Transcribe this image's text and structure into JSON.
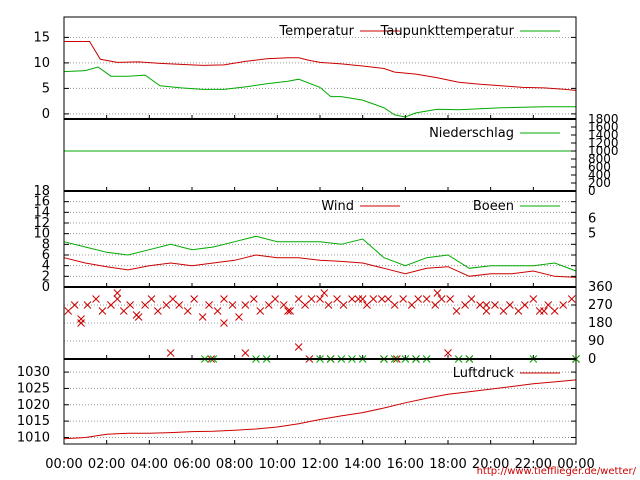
{
  "colors": {
    "red": "#cc0000",
    "green": "#00aa00",
    "grid": "#999999"
  },
  "credit": "http://www.tiefflieger.de/wetter/",
  "chart_data": [
    {
      "type": "line",
      "name": "temperature",
      "ylim": [
        -1,
        19
      ],
      "yticks": [
        0,
        5,
        10,
        15
      ],
      "grid": true,
      "legend": "top-right",
      "series": [
        {
          "name": "Temperatur",
          "color": "#cc0000",
          "x": [
            0,
            1.2,
            1.7,
            2.5,
            3.5,
            4.5,
            5.5,
            6.5,
            7.5,
            8.5,
            9.5,
            10.5,
            11.0,
            11.5,
            12.0,
            13.0,
            14.0,
            15.0,
            15.5,
            16.5,
            17.5,
            18.5,
            19.5,
            20.5,
            21.5,
            22.5,
            23.5,
            24.0
          ],
          "values": [
            14.2,
            14.2,
            10.7,
            10.1,
            10.2,
            9.9,
            9.7,
            9.5,
            9.6,
            10.3,
            10.8,
            11.0,
            11.0,
            10.5,
            10.1,
            9.8,
            9.4,
            8.9,
            8.2,
            7.8,
            7.1,
            6.2,
            5.8,
            5.5,
            5.2,
            5.1,
            4.8,
            4.6
          ]
        },
        {
          "name": "Taupunkttemperatur",
          "color": "#00aa00",
          "x": [
            0,
            1.0,
            1.6,
            2.2,
            3.0,
            3.8,
            4.5,
            5.5,
            6.5,
            7.5,
            8.5,
            9.5,
            10.5,
            11.0,
            12.0,
            12.5,
            13.0,
            14.0,
            15.0,
            15.5,
            16.0,
            16.5,
            17.5,
            18.5,
            19.5,
            20.5,
            21.5,
            22.5,
            24.0
          ],
          "values": [
            8.3,
            8.5,
            9.2,
            7.4,
            7.4,
            7.6,
            5.5,
            5.1,
            4.8,
            4.8,
            5.3,
            5.9,
            6.4,
            6.8,
            5.2,
            3.4,
            3.4,
            2.7,
            1.2,
            -0.2,
            -0.6,
            0.2,
            0.9,
            0.8,
            1.0,
            1.2,
            1.3,
            1.4,
            1.4
          ]
        }
      ]
    },
    {
      "type": "line",
      "name": "precipitation",
      "ylim": [
        0,
        1800
      ],
      "yticks": [
        0,
        200,
        400,
        600,
        800,
        1000,
        1200,
        1400,
        1600,
        1800
      ],
      "y_axis": "right",
      "legend": "top-right",
      "series": [
        {
          "name": "Niederschlag",
          "color": "#00aa00",
          "x": [
            0,
            24
          ],
          "values": [
            1000,
            1000
          ]
        }
      ]
    },
    {
      "type": "line",
      "name": "wind",
      "ylim": [
        0,
        18
      ],
      "yticks": [
        0,
        2,
        4,
        6,
        8,
        10,
        12,
        14,
        16,
        18
      ],
      "right_yticks": [
        {
          "label": "6",
          "at": 12.8
        },
        {
          "label": "5",
          "at": 10.0
        }
      ],
      "grid": true,
      "legend": "top-right",
      "series": [
        {
          "name": "Wind",
          "color": "#cc0000",
          "x": [
            0,
            1,
            2,
            3,
            4,
            5,
            6,
            7,
            8,
            9,
            10,
            11,
            12,
            13,
            14,
            15,
            16,
            17,
            18,
            19,
            20,
            21,
            22,
            23,
            24
          ],
          "values": [
            5.5,
            4.5,
            3.8,
            3.2,
            4.0,
            4.5,
            4.0,
            4.5,
            5.0,
            6.0,
            5.5,
            5.5,
            5.0,
            4.8,
            4.5,
            3.5,
            2.5,
            3.5,
            3.8,
            2.0,
            2.5,
            2.5,
            3.0,
            2.0,
            1.8
          ]
        },
        {
          "name": "Boeen",
          "color": "#00aa00",
          "x": [
            0,
            1,
            2,
            3,
            4,
            5,
            6,
            7,
            8,
            9,
            10,
            11,
            12,
            13,
            14,
            15,
            16,
            17,
            18,
            19,
            20,
            21,
            22,
            23,
            24
          ],
          "values": [
            8.5,
            7.5,
            6.5,
            6.0,
            7.0,
            8.0,
            7.0,
            7.5,
            8.5,
            9.5,
            8.5,
            8.5,
            8.5,
            8.0,
            9.0,
            5.5,
            4.0,
            5.5,
            6.0,
            3.5,
            4.0,
            4.0,
            4.0,
            4.5,
            3.0
          ]
        }
      ]
    },
    {
      "type": "scatter",
      "name": "wind_direction",
      "ylim": [
        0,
        360
      ],
      "yticks": [
        0,
        90,
        180,
        270,
        360
      ],
      "y_axis": "right",
      "grid": true,
      "series": [
        {
          "name": "",
          "color": "#cc0000",
          "x": [
            0.2,
            0.5,
            0.8,
            1.1,
            1.5,
            1.8,
            2.2,
            2.5,
            2.8,
            3.1,
            3.4,
            3.8,
            4.1,
            4.4,
            4.8,
            5.1,
            5.4,
            5.8,
            6.1,
            6.5,
            6.8,
            7.2,
            7.5,
            7.9,
            8.2,
            8.5,
            8.9,
            9.2,
            9.6,
            9.9,
            10.3,
            10.6,
            11.0,
            11.3,
            11.6,
            12.0,
            12.4,
            12.8,
            13.1,
            13.5,
            13.8,
            14.2,
            14.5,
            14.9,
            15.2,
            15.5,
            15.9,
            16.3,
            16.6,
            17.0,
            17.4,
            17.7,
            18.1,
            18.4,
            18.8,
            19.1,
            19.5,
            19.8,
            20.2,
            20.6,
            20.9,
            21.3,
            21.6,
            22.0,
            22.3,
            22.7,
            23.0,
            23.4,
            23.8,
            2.5,
            5.0,
            6.9,
            8.5,
            11.0,
            11.5,
            12.5,
            15.0,
            15.6,
            16.5,
            18.0,
            19.0,
            24.0,
            0.8,
            3.5,
            7.5,
            10.5,
            12.2,
            14.0,
            17.5,
            19.8,
            22.5
          ],
          "values": [
            240,
            270,
            200,
            270,
            300,
            240,
            270,
            300,
            240,
            270,
            220,
            270,
            300,
            240,
            270,
            300,
            270,
            240,
            300,
            210,
            270,
            240,
            300,
            270,
            210,
            270,
            300,
            240,
            270,
            300,
            270,
            240,
            300,
            270,
            300,
            300,
            270,
            300,
            270,
            300,
            300,
            270,
            300,
            300,
            300,
            270,
            300,
            270,
            300,
            300,
            270,
            300,
            300,
            240,
            270,
            300,
            270,
            240,
            270,
            240,
            270,
            240,
            270,
            300,
            240,
            270,
            240,
            270,
            300,
            330,
            30,
            0,
            30,
            60,
            0,
            0,
            0,
            0,
            0,
            30,
            0,
            0,
            180,
            210,
            180,
            240,
            330,
            300,
            330,
            270,
            240
          ]
        },
        {
          "name": "",
          "color": "#00aa00",
          "x": [
            6.6,
            7.0,
            9.0,
            9.5,
            12.0,
            12.5,
            13.0,
            13.5,
            14.0,
            15.0,
            15.5,
            16.0,
            16.5,
            17.0,
            18.5,
            19.0,
            22.0,
            24.0
          ],
          "values": [
            0,
            0,
            0,
            0,
            0,
            0,
            0,
            0,
            0,
            0,
            0,
            0,
            0,
            0,
            0,
            0,
            0,
            0
          ]
        }
      ]
    },
    {
      "type": "line",
      "name": "pressure",
      "ylim": [
        1008,
        1034
      ],
      "yticks": [
        1010,
        1015,
        1020,
        1025,
        1030
      ],
      "grid": true,
      "legend": "top-right",
      "series": [
        {
          "name": "Luftdruck",
          "color": "#cc0000",
          "x": [
            0,
            1,
            2,
            3,
            4,
            5,
            6,
            7,
            8,
            9,
            10,
            11,
            12,
            13,
            14,
            15,
            16,
            17,
            18,
            19,
            20,
            21,
            22,
            23,
            24
          ],
          "values": [
            1009.6,
            1010.0,
            1011.0,
            1011.3,
            1011.3,
            1011.5,
            1011.8,
            1011.9,
            1012.2,
            1012.6,
            1013.2,
            1014.2,
            1015.5,
            1016.6,
            1017.6,
            1019.0,
            1020.6,
            1022.0,
            1023.2,
            1024.0,
            1024.8,
            1025.6,
            1026.4,
            1027.0,
            1027.6
          ]
        }
      ]
    }
  ],
  "x_axis": {
    "min": 0,
    "max": 24,
    "tick_labels": [
      "00:00",
      "02:00",
      "04:00",
      "06:00",
      "08:00",
      "10:00",
      "12:00",
      "14:00",
      "16:00",
      "18:00",
      "20:00",
      "22:00",
      "00:00"
    ]
  }
}
